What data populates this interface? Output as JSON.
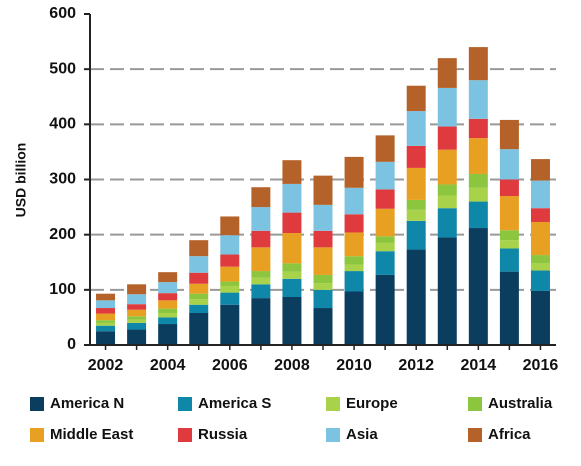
{
  "chart_data": {
    "type": "stacked-bar",
    "y_label": "USD billion",
    "categories": [
      "2002",
      null,
      "2004",
      null,
      "2006",
      null,
      "2008",
      null,
      "2010",
      null,
      "2012",
      null,
      "2014",
      null,
      "2016"
    ],
    "series": [
      {
        "name": "America N",
        "color": "#0b3d5e",
        "values": [
          25,
          28,
          38,
          58,
          73,
          85,
          87,
          67,
          97,
          127,
          173,
          195,
          212,
          133,
          98
        ]
      },
      {
        "name": "America S",
        "color": "#0f87a8",
        "values": [
          10,
          12,
          12,
          15,
          22,
          25,
          33,
          33,
          37,
          43,
          52,
          53,
          48,
          42,
          37
        ]
      },
      {
        "name": "Europe",
        "color": "#a8d24a",
        "values": [
          5,
          6,
          8,
          10,
          12,
          12,
          13,
          12,
          12,
          15,
          20,
          23,
          25,
          15,
          13
        ]
      },
      {
        "name": "Australia",
        "color": "#8cc63f",
        "values": [
          5,
          6,
          8,
          10,
          8,
          12,
          15,
          15,
          15,
          12,
          18,
          20,
          25,
          18,
          15
        ]
      },
      {
        "name": "Middle East",
        "color": "#e8a022",
        "values": [
          12,
          12,
          15,
          18,
          27,
          43,
          55,
          50,
          43,
          50,
          58,
          63,
          65,
          62,
          60
        ]
      },
      {
        "name": "Russia",
        "color": "#df3a3e",
        "values": [
          10,
          10,
          13,
          20,
          22,
          30,
          37,
          30,
          33,
          35,
          40,
          42,
          35,
          30,
          25
        ]
      },
      {
        "name": "Asia",
        "color": "#7cc3e1",
        "values": [
          14,
          18,
          20,
          30,
          35,
          43,
          52,
          47,
          48,
          50,
          63,
          70,
          70,
          55,
          50
        ]
      },
      {
        "name": "Africa",
        "color": "#b4622a",
        "values": [
          12,
          18,
          18,
          29,
          34,
          36,
          43,
          53,
          56,
          48,
          46,
          54,
          60,
          53,
          39
        ]
      }
    ],
    "ylim": [
      0,
      600
    ],
    "yticks": [
      0,
      100,
      200,
      300,
      400,
      500,
      600
    ],
    "grid": true,
    "legend": "bottom"
  }
}
